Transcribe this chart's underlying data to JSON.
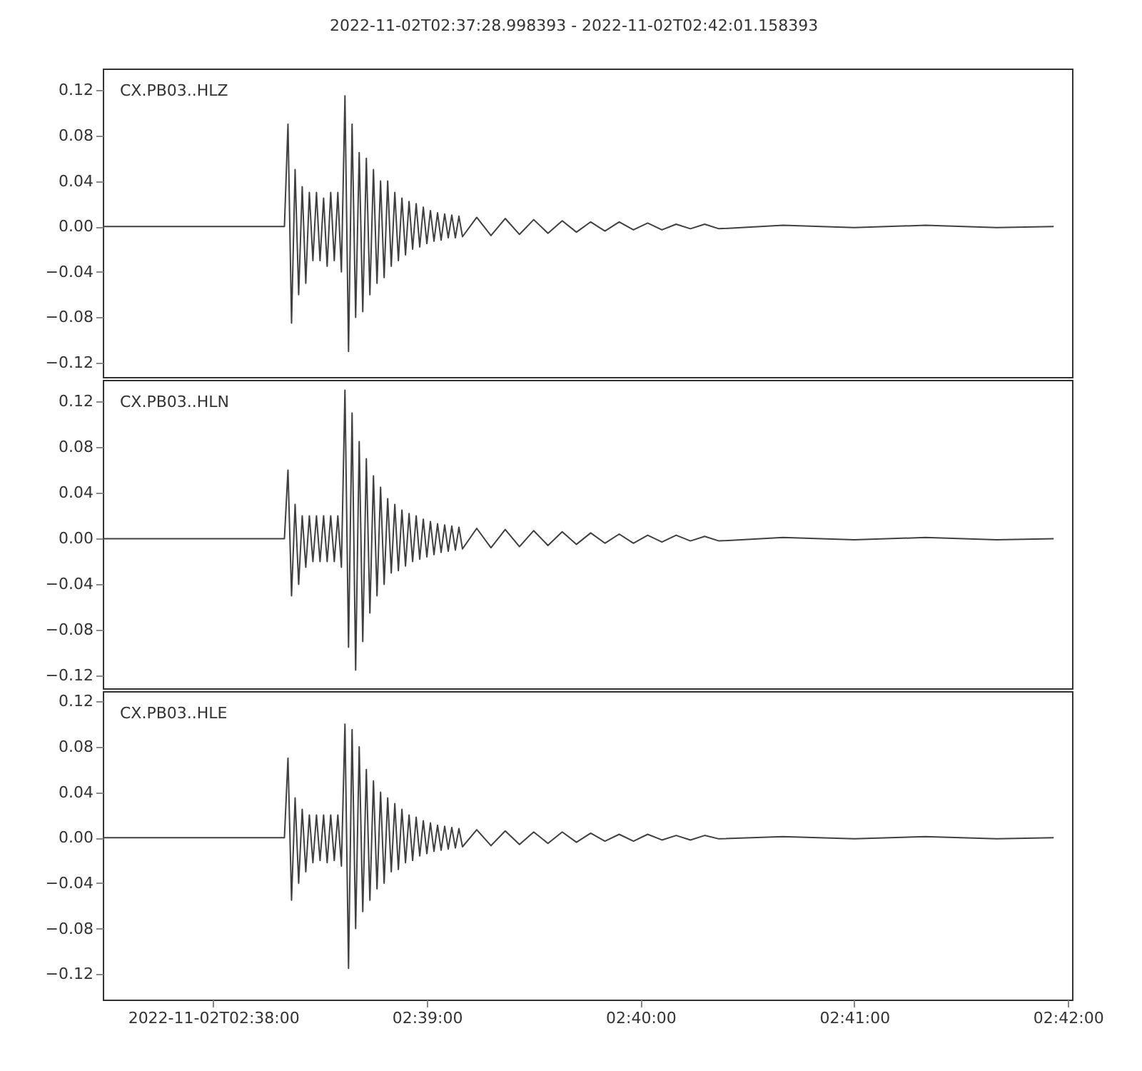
{
  "chart_data": [
    {
      "type": "line",
      "title": "2022-11-02T02:37:28.998393  -  2022-11-02T02:42:01.158393",
      "annotations": [
        "CX.PB03..HLZ"
      ],
      "tick_labels": "y",
      "grid": false,
      "xlim": [
        "2022-11-02T02:37:28.998",
        "2022-11-02T02:42:01.158"
      ],
      "ylim": [
        -0.1325,
        0.139
      ],
      "yticks": [
        {
          "value": 0.12,
          "label": "0.12"
        },
        {
          "value": 0.08,
          "label": "0.08"
        },
        {
          "value": 0.04,
          "label": "0.04"
        },
        {
          "value": 0,
          "label": "0.00"
        },
        {
          "value": -0.04,
          "label": "−0.04"
        },
        {
          "value": -0.08,
          "label": "−0.08"
        },
        {
          "value": -0.12,
          "label": "−0.12"
        }
      ],
      "series": [
        {
          "color": "#404040",
          "x": [
            "2022-11-02T02:37:29",
            "2022-11-02T02:38:20",
            "2022-11-02T02:38:21",
            "2022-11-02T02:38:22",
            "2022-11-02T02:38:23",
            "2022-11-02T02:38:24",
            "2022-11-02T02:38:25",
            "2022-11-02T02:38:26",
            "2022-11-02T02:38:27",
            "2022-11-02T02:38:28",
            "2022-11-02T02:38:29",
            "2022-11-02T02:38:30",
            "2022-11-02T02:38:31",
            "2022-11-02T02:38:32",
            "2022-11-02T02:38:33",
            "2022-11-02T02:38:34",
            "2022-11-02T02:38:35",
            "2022-11-02T02:38:36",
            "2022-11-02T02:38:37",
            "2022-11-02T02:38:38",
            "2022-11-02T02:38:39",
            "2022-11-02T02:38:40",
            "2022-11-02T02:38:41",
            "2022-11-02T02:38:42",
            "2022-11-02T02:38:43",
            "2022-11-02T02:38:44",
            "2022-11-02T02:38:45",
            "2022-11-02T02:38:46",
            "2022-11-02T02:38:47",
            "2022-11-02T02:38:48",
            "2022-11-02T02:38:49",
            "2022-11-02T02:38:50",
            "2022-11-02T02:38:51",
            "2022-11-02T02:38:52",
            "2022-11-02T02:38:53",
            "2022-11-02T02:38:54",
            "2022-11-02T02:38:55",
            "2022-11-02T02:38:56",
            "2022-11-02T02:38:57",
            "2022-11-02T02:38:58",
            "2022-11-02T02:38:59",
            "2022-11-02T02:39:00",
            "2022-11-02T02:39:01",
            "2022-11-02T02:39:02",
            "2022-11-02T02:39:03",
            "2022-11-02T02:39:04",
            "2022-11-02T02:39:05",
            "2022-11-02T02:39:06",
            "2022-11-02T02:39:07",
            "2022-11-02T02:39:08",
            "2022-11-02T02:39:09",
            "2022-11-02T02:39:10",
            "2022-11-02T02:39:14",
            "2022-11-02T02:39:18",
            "2022-11-02T02:39:22",
            "2022-11-02T02:39:26",
            "2022-11-02T02:39:30",
            "2022-11-02T02:39:34",
            "2022-11-02T02:39:38",
            "2022-11-02T02:39:42",
            "2022-11-02T02:39:46",
            "2022-11-02T02:39:50",
            "2022-11-02T02:39:54",
            "2022-11-02T02:39:58",
            "2022-11-02T02:40:02",
            "2022-11-02T02:40:06",
            "2022-11-02T02:40:10",
            "2022-11-02T02:40:14",
            "2022-11-02T02:40:18",
            "2022-11-02T02:40:22",
            "2022-11-02T02:40:40",
            "2022-11-02T02:41:00",
            "2022-11-02T02:41:20",
            "2022-11-02T02:41:40",
            "2022-11-02T02:41:56"
          ],
          "values": [
            0,
            0,
            0.09,
            -0.085,
            0.05,
            -0.06,
            0.035,
            -0.05,
            0.03,
            -0.03,
            0.03,
            -0.03,
            0.025,
            -0.035,
            0.03,
            -0.03,
            0.03,
            -0.04,
            0.115,
            -0.11,
            0.09,
            -0.08,
            0.065,
            -0.075,
            0.06,
            -0.06,
            0.05,
            -0.05,
            0.04,
            -0.045,
            0.04,
            -0.035,
            0.03,
            -0.03,
            0.025,
            -0.025,
            0.022,
            -0.02,
            0.02,
            -0.018,
            0.017,
            -0.015,
            0.014,
            -0.013,
            0.012,
            -0.012,
            0.011,
            -0.01,
            0.01,
            -0.01,
            0.009,
            -0.009,
            0.008,
            -0.008,
            0.007,
            -0.007,
            0.006,
            -0.006,
            0.005,
            -0.005,
            0.004,
            -0.004,
            0.004,
            -0.003,
            0.003,
            -0.003,
            0.002,
            -0.002,
            0.002,
            -0.002,
            0.001,
            -0.001,
            0.001,
            -0.001,
            0
          ]
        }
      ]
    },
    {
      "type": "line",
      "annotations": [
        "CX.PB03..HLN"
      ],
      "tick_labels": "y",
      "grid": false,
      "xlim": [
        "2022-11-02T02:37:28.998",
        "2022-11-02T02:42:01.158"
      ],
      "ylim": [
        -0.131,
        0.139
      ],
      "yticks": [
        {
          "value": 0.12,
          "label": "0.12"
        },
        {
          "value": 0.08,
          "label": "0.08"
        },
        {
          "value": 0.04,
          "label": "0.04"
        },
        {
          "value": 0,
          "label": "0.00"
        },
        {
          "value": -0.04,
          "label": "−0.04"
        },
        {
          "value": -0.08,
          "label": "−0.08"
        },
        {
          "value": -0.12,
          "label": "−0.12"
        }
      ],
      "series": [
        {
          "color": "#404040",
          "x": [
            "2022-11-02T02:37:29",
            "2022-11-02T02:38:20",
            "2022-11-02T02:38:21",
            "2022-11-02T02:38:22",
            "2022-11-02T02:38:23",
            "2022-11-02T02:38:24",
            "2022-11-02T02:38:25",
            "2022-11-02T02:38:26",
            "2022-11-02T02:38:27",
            "2022-11-02T02:38:28",
            "2022-11-02T02:38:29",
            "2022-11-02T02:38:30",
            "2022-11-02T02:38:31",
            "2022-11-02T02:38:32",
            "2022-11-02T02:38:33",
            "2022-11-02T02:38:34",
            "2022-11-02T02:38:35",
            "2022-11-02T02:38:36",
            "2022-11-02T02:38:37",
            "2022-11-02T02:38:38",
            "2022-11-02T02:38:39",
            "2022-11-02T02:38:40",
            "2022-11-02T02:38:41",
            "2022-11-02T02:38:42",
            "2022-11-02T02:38:43",
            "2022-11-02T02:38:44",
            "2022-11-02T02:38:45",
            "2022-11-02T02:38:46",
            "2022-11-02T02:38:47",
            "2022-11-02T02:38:48",
            "2022-11-02T02:38:49",
            "2022-11-02T02:38:50",
            "2022-11-02T02:38:51",
            "2022-11-02T02:38:52",
            "2022-11-02T02:38:53",
            "2022-11-02T02:38:54",
            "2022-11-02T02:38:55",
            "2022-11-02T02:38:56",
            "2022-11-02T02:38:57",
            "2022-11-02T02:38:58",
            "2022-11-02T02:38:59",
            "2022-11-02T02:39:00",
            "2022-11-02T02:39:01",
            "2022-11-02T02:39:02",
            "2022-11-02T02:39:03",
            "2022-11-02T02:39:04",
            "2022-11-02T02:39:05",
            "2022-11-02T02:39:06",
            "2022-11-02T02:39:07",
            "2022-11-02T02:39:08",
            "2022-11-02T02:39:09",
            "2022-11-02T02:39:10",
            "2022-11-02T02:39:14",
            "2022-11-02T02:39:18",
            "2022-11-02T02:39:22",
            "2022-11-02T02:39:26",
            "2022-11-02T02:39:30",
            "2022-11-02T02:39:34",
            "2022-11-02T02:39:38",
            "2022-11-02T02:39:42",
            "2022-11-02T02:39:46",
            "2022-11-02T02:39:50",
            "2022-11-02T02:39:54",
            "2022-11-02T02:39:58",
            "2022-11-02T02:40:02",
            "2022-11-02T02:40:06",
            "2022-11-02T02:40:10",
            "2022-11-02T02:40:14",
            "2022-11-02T02:40:18",
            "2022-11-02T02:40:22",
            "2022-11-02T02:40:40",
            "2022-11-02T02:41:00",
            "2022-11-02T02:41:20",
            "2022-11-02T02:41:40",
            "2022-11-02T02:41:56"
          ],
          "values": [
            0,
            0,
            0.06,
            -0.05,
            0.03,
            -0.04,
            0.02,
            -0.025,
            0.02,
            -0.02,
            0.02,
            -0.02,
            0.02,
            -0.02,
            0.02,
            -0.02,
            0.02,
            -0.025,
            0.13,
            -0.095,
            0.11,
            -0.115,
            0.085,
            -0.09,
            0.07,
            -0.065,
            0.055,
            -0.05,
            0.045,
            -0.04,
            0.035,
            -0.03,
            0.03,
            -0.028,
            0.025,
            -0.024,
            0.022,
            -0.02,
            0.02,
            -0.018,
            0.017,
            -0.016,
            0.015,
            -0.014,
            0.013,
            -0.012,
            0.012,
            -0.011,
            0.011,
            -0.01,
            0.01,
            -0.009,
            0.009,
            -0.008,
            0.008,
            -0.007,
            0.007,
            -0.006,
            0.006,
            -0.005,
            0.005,
            -0.004,
            0.004,
            -0.004,
            0.003,
            -0.003,
            0.003,
            -0.002,
            0.002,
            -0.002,
            0.001,
            -0.001,
            0.001,
            -0.001,
            0
          ]
        }
      ]
    },
    {
      "type": "line",
      "annotations": [
        "CX.PB03..HLE"
      ],
      "grid": false,
      "xlim": [
        "2022-11-02T02:37:28.998",
        "2022-11-02T02:42:01.158"
      ],
      "xticks": [
        {
          "value": "2022-11-02T02:38:00",
          "label": "2022-11-02T02:38:00"
        },
        {
          "value": "2022-11-02T02:39:00",
          "label": "02:39:00"
        },
        {
          "value": "2022-11-02T02:40:00",
          "label": "02:40:00"
        },
        {
          "value": "2022-11-02T02:41:00",
          "label": "02:41:00"
        },
        {
          "value": "2022-11-02T02:42:00",
          "label": "02:42:00"
        }
      ],
      "ylim": [
        -0.1425,
        0.129
      ],
      "yticks": [
        {
          "value": 0.12,
          "label": "0.12"
        },
        {
          "value": 0.08,
          "label": "0.08"
        },
        {
          "value": 0.04,
          "label": "0.04"
        },
        {
          "value": 0,
          "label": "0.00"
        },
        {
          "value": -0.04,
          "label": "−0.04"
        },
        {
          "value": -0.08,
          "label": "−0.08"
        },
        {
          "value": -0.12,
          "label": "−0.12"
        }
      ],
      "series": [
        {
          "color": "#404040",
          "x": [
            "2022-11-02T02:37:29",
            "2022-11-02T02:38:20",
            "2022-11-02T02:38:21",
            "2022-11-02T02:38:22",
            "2022-11-02T02:38:23",
            "2022-11-02T02:38:24",
            "2022-11-02T02:38:25",
            "2022-11-02T02:38:26",
            "2022-11-02T02:38:27",
            "2022-11-02T02:38:28",
            "2022-11-02T02:38:29",
            "2022-11-02T02:38:30",
            "2022-11-02T02:38:31",
            "2022-11-02T02:38:32",
            "2022-11-02T02:38:33",
            "2022-11-02T02:38:34",
            "2022-11-02T02:38:35",
            "2022-11-02T02:38:36",
            "2022-11-02T02:38:37",
            "2022-11-02T02:38:38",
            "2022-11-02T02:38:39",
            "2022-11-02T02:38:40",
            "2022-11-02T02:38:41",
            "2022-11-02T02:38:42",
            "2022-11-02T02:38:43",
            "2022-11-02T02:38:44",
            "2022-11-02T02:38:45",
            "2022-11-02T02:38:46",
            "2022-11-02T02:38:47",
            "2022-11-02T02:38:48",
            "2022-11-02T02:38:49",
            "2022-11-02T02:38:50",
            "2022-11-02T02:38:51",
            "2022-11-02T02:38:52",
            "2022-11-02T02:38:53",
            "2022-11-02T02:38:54",
            "2022-11-02T02:38:55",
            "2022-11-02T02:38:56",
            "2022-11-02T02:38:57",
            "2022-11-02T02:38:58",
            "2022-11-02T02:38:59",
            "2022-11-02T02:39:00",
            "2022-11-02T02:39:01",
            "2022-11-02T02:39:02",
            "2022-11-02T02:39:03",
            "2022-11-02T02:39:04",
            "2022-11-02T02:39:05",
            "2022-11-02T02:39:06",
            "2022-11-02T02:39:07",
            "2022-11-02T02:39:08",
            "2022-11-02T02:39:09",
            "2022-11-02T02:39:10",
            "2022-11-02T02:39:14",
            "2022-11-02T02:39:18",
            "2022-11-02T02:39:22",
            "2022-11-02T02:39:26",
            "2022-11-02T02:39:30",
            "2022-11-02T02:39:34",
            "2022-11-02T02:39:38",
            "2022-11-02T02:39:42",
            "2022-11-02T02:39:46",
            "2022-11-02T02:39:50",
            "2022-11-02T02:39:54",
            "2022-11-02T02:39:58",
            "2022-11-02T02:40:02",
            "2022-11-02T02:40:06",
            "2022-11-02T02:40:10",
            "2022-11-02T02:40:14",
            "2022-11-02T02:40:18",
            "2022-11-02T02:40:22",
            "2022-11-02T02:40:40",
            "2022-11-02T02:41:00",
            "2022-11-02T02:41:20",
            "2022-11-02T02:41:40",
            "2022-11-02T02:41:56"
          ],
          "values": [
            0,
            0,
            0.07,
            -0.055,
            0.035,
            -0.04,
            0.025,
            -0.03,
            0.02,
            -0.022,
            0.02,
            -0.02,
            0.02,
            -0.022,
            0.02,
            -0.02,
            0.02,
            -0.025,
            0.1,
            -0.115,
            0.095,
            -0.08,
            0.08,
            -0.065,
            0.06,
            -0.055,
            0.05,
            -0.045,
            0.04,
            -0.04,
            0.035,
            -0.03,
            0.03,
            -0.028,
            0.025,
            -0.022,
            0.02,
            -0.02,
            0.018,
            -0.016,
            0.015,
            -0.014,
            0.013,
            -0.012,
            0.011,
            -0.011,
            0.01,
            -0.01,
            0.009,
            -0.009,
            0.008,
            -0.008,
            0.007,
            -0.007,
            0.006,
            -0.006,
            0.005,
            -0.005,
            0.005,
            -0.004,
            0.004,
            -0.003,
            0.003,
            -0.003,
            0.003,
            -0.002,
            0.002,
            -0.002,
            0.002,
            -0.001,
            0.001,
            -0.001,
            0.001,
            -0.001,
            0
          ]
        }
      ]
    }
  ]
}
